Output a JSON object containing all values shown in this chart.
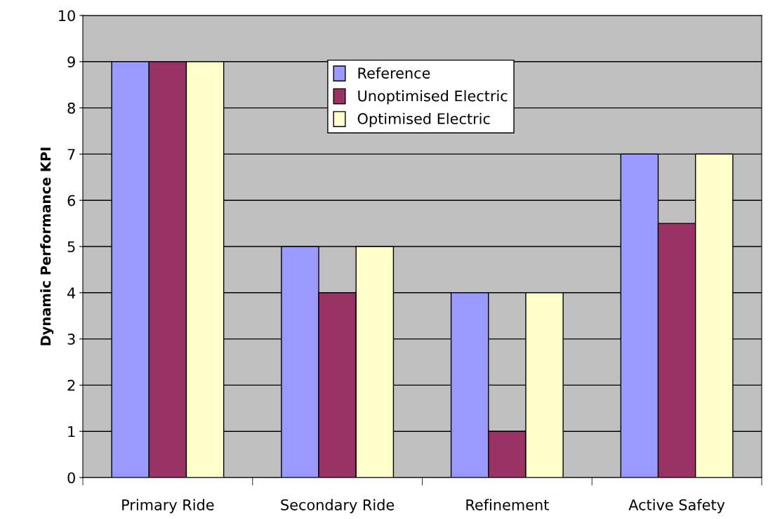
{
  "chart_data": {
    "type": "bar",
    "ylabel": "Dynamic Performance KPI",
    "categories": [
      "Primary Ride",
      "Secondary Ride",
      "Refinement",
      "Active Safety"
    ],
    "series": [
      {
        "name": "Reference",
        "color": "#9999ff",
        "values": [
          9,
          5,
          4,
          7
        ]
      },
      {
        "name": "Unoptimised Electric",
        "color": "#993366",
        "values": [
          9,
          4,
          1,
          5.5
        ]
      },
      {
        "name": "Optimised Electric",
        "color": "#ffffcc",
        "values": [
          9,
          5,
          4,
          7
        ]
      }
    ],
    "ylim": [
      0,
      10
    ],
    "yticks": [
      0,
      1,
      2,
      3,
      4,
      5,
      6,
      7,
      8,
      9,
      10
    ],
    "grid": "y",
    "legend": "top"
  }
}
